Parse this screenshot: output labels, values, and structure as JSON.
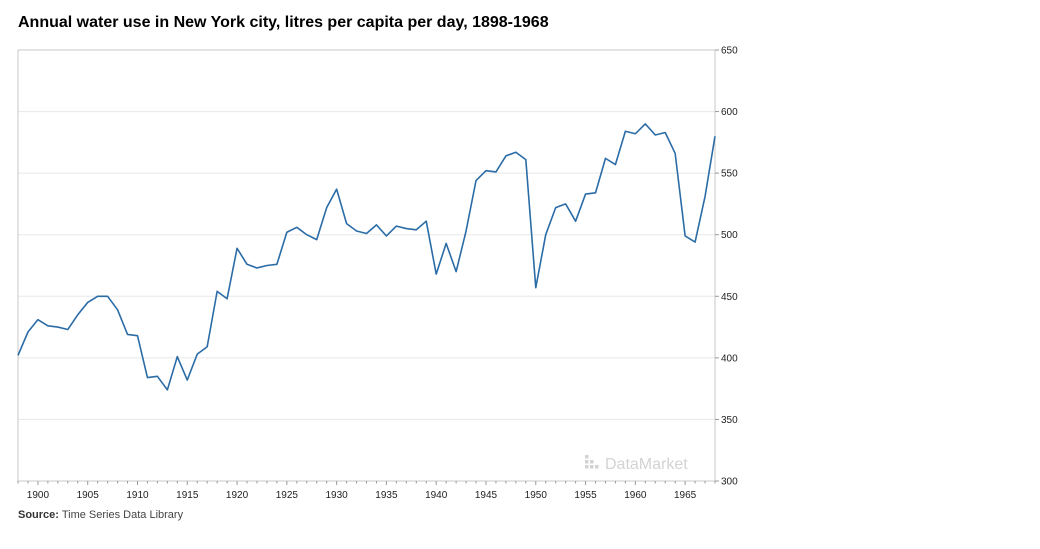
{
  "source_label": "Source:",
  "source_text": "Time Series Data Library",
  "watermark": "DataMarket",
  "colors": {
    "line": "#2b6ca6",
    "grid": "#e8e8e8",
    "frame": "#c8c8c8",
    "watermark": "#d3d3d3"
  },
  "chart_data": {
    "type": "line",
    "title": "Annual water use in New York city, litres per capita per day, 1898-1968",
    "xlabel": "",
    "ylabel": "",
    "xlim": [
      1898,
      1968
    ],
    "ylim": [
      300,
      650
    ],
    "x_ticks": [
      1900,
      1905,
      1910,
      1915,
      1920,
      1925,
      1930,
      1935,
      1940,
      1945,
      1950,
      1955,
      1960,
      1965
    ],
    "y_ticks": [
      300,
      350,
      400,
      450,
      500,
      550,
      600,
      650
    ],
    "y_axis_position": "right",
    "grid": "horizontal",
    "legend": "none",
    "series": [
      {
        "x": [
          1898,
          1899,
          1900,
          1901,
          1902,
          1903,
          1904,
          1905,
          1906,
          1907,
          1908,
          1909,
          1910,
          1911,
          1912,
          1913,
          1914,
          1915,
          1916,
          1917,
          1918,
          1919,
          1920,
          1921,
          1922,
          1923,
          1924,
          1925,
          1926,
          1927,
          1928,
          1929,
          1930,
          1931,
          1932,
          1933,
          1934,
          1935,
          1936,
          1937,
          1938,
          1939,
          1940,
          1941,
          1942,
          1943,
          1944,
          1945,
          1946,
          1947,
          1948,
          1949,
          1950,
          1951,
          1952,
          1953,
          1954,
          1955,
          1956,
          1957,
          1958,
          1959,
          1960,
          1961,
          1962,
          1963,
          1964,
          1965,
          1966,
          1967,
          1968
        ],
        "values": [
          402,
          421,
          431,
          426,
          425,
          423,
          435,
          445,
          450,
          450,
          439,
          419,
          418,
          384,
          385,
          374,
          401,
          382,
          403,
          409,
          454,
          448,
          489,
          476,
          473,
          475,
          476,
          502,
          506,
          500,
          496,
          522,
          537,
          509,
          503,
          501,
          508,
          499,
          507,
          505,
          504,
          511,
          468,
          493,
          470,
          503,
          544,
          552,
          551,
          564,
          567,
          561,
          457,
          500,
          522,
          525,
          511,
          533,
          534,
          562,
          557,
          584,
          582,
          590,
          581,
          583,
          566,
          499,
          494,
          531,
          580
        ]
      }
    ]
  }
}
